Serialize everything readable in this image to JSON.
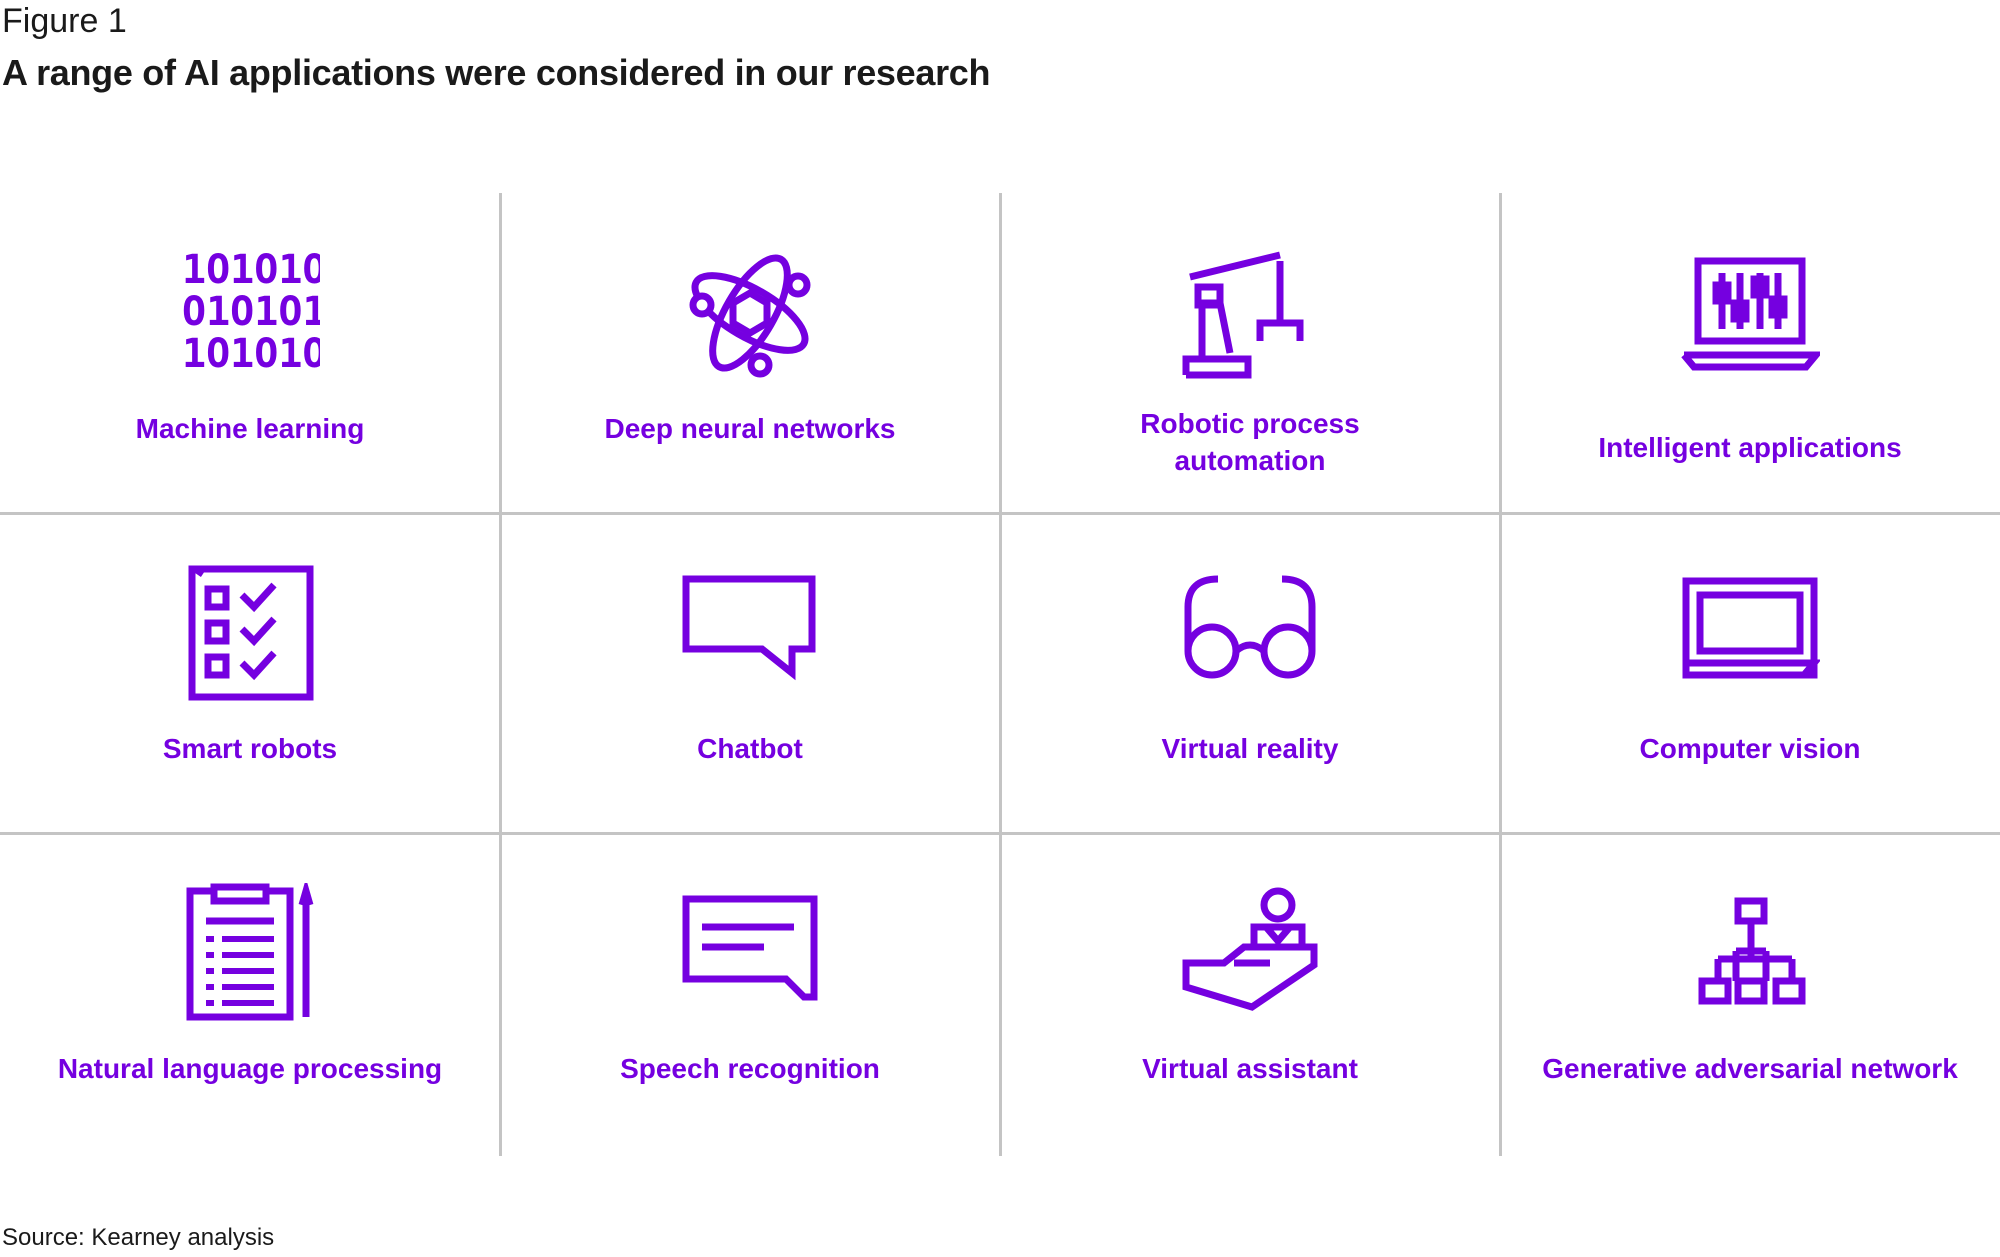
{
  "figure_label": "Figure 1",
  "title": "A range of AI applications were considered in our research",
  "source": "Source: Kearney analysis",
  "accent_color": "#7500e0",
  "divider_color": "#c4c4c4",
  "items": [
    {
      "label": "Machine learning",
      "icon": "binary-code-icon"
    },
    {
      "label": "Deep neural networks",
      "icon": "atom-icon"
    },
    {
      "label": "Robotic process automation",
      "icon": "robot-arm-icon"
    },
    {
      "label": "Intelligent applications",
      "icon": "laptop-sliders-icon"
    },
    {
      "label": "Smart robots",
      "icon": "checklist-icon"
    },
    {
      "label": "Chatbot",
      "icon": "speech-bubble-icon"
    },
    {
      "label": "Virtual reality",
      "icon": "glasses-icon"
    },
    {
      "label": "Computer vision",
      "icon": "laptop-icon"
    },
    {
      "label": "Natural language processing",
      "icon": "clipboard-list-icon"
    },
    {
      "label": "Speech recognition",
      "icon": "message-bubble-icon"
    },
    {
      "label": "Virtual assistant",
      "icon": "hand-person-icon"
    },
    {
      "label": "Generative adversarial network",
      "icon": "hierarchy-icon"
    }
  ]
}
